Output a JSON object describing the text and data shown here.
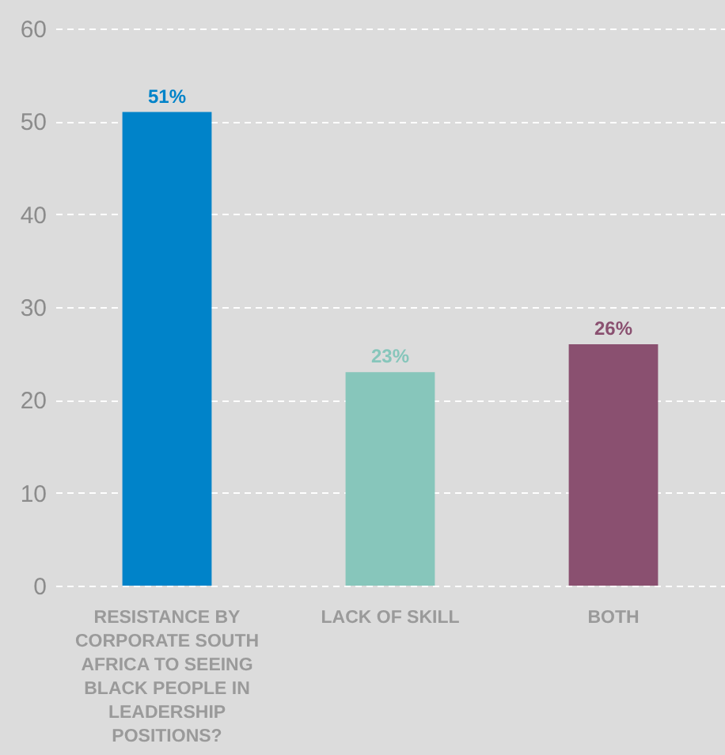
{
  "chart_data": {
    "type": "bar",
    "categories": [
      "RESISTANCE BY CORPORATE SOUTH AFRICA TO SEEING BLACK PEOPLE IN LEADERSHIP POSITIONS?",
      "LACK OF SKILL",
      "BOTH"
    ],
    "values": [
      51,
      23,
      26
    ],
    "colors": [
      "#0083c9",
      "#87c6bb",
      "#8a5070"
    ],
    "ylim": [
      0,
      60
    ],
    "yticks": [
      0,
      10,
      20,
      30,
      40,
      50,
      60
    ],
    "grid": "y",
    "data_labels": true,
    "value_labels": [
      "51%",
      "23%",
      "26%"
    ]
  }
}
